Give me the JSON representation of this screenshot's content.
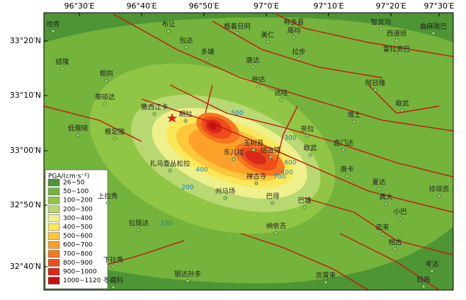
{
  "axes": {
    "lon": [
      "96°30′E",
      "96°40′E",
      "96°50′E",
      "97°0′E",
      "97°10′E",
      "97°20′E",
      "97°30′E"
    ],
    "lat": [
      "33°20′N",
      "33°10′N",
      "33°00′N",
      "32°50′N",
      "32°40′N"
    ]
  },
  "places": [
    "哈秀",
    "布让",
    "根着日阿",
    "称多县",
    "周均",
    "智贡沟",
    "曲麻陇巴",
    "包达",
    "美仁",
    "西道班",
    "多塘",
    "拉步",
    "宴拉贡巴",
    "结隆",
    "唐达",
    "帮同",
    "仲达",
    "阿日隆",
    "蒂琼达",
    "达哇",
    "歇武",
    "撒西江卡",
    "期拉",
    "增土",
    "低俄晓",
    "根足陇",
    "奈拉",
    "直门达",
    "玉树县",
    "结古镇",
    "东儿拉",
    "歇武",
    "扎马查丛松拉",
    "禅古寺",
    "唐卡",
    "夏达",
    "珍琼贡",
    "州马场",
    "巴得",
    "真大",
    "巴塘",
    "上拉秀",
    "小巴",
    "拉陇达",
    "纳依吉",
    "忠来",
    "相古",
    "下拉秀",
    "银达孙多",
    "贡霄来",
    "冬藏科",
    "考达",
    "挡拖"
  ],
  "contour_labels": [
    "500",
    "400",
    "300",
    "400",
    "600",
    "700",
    "200",
    "100"
  ],
  "legend": {
    "title": "PGA/(cm·s⁻²)",
    "items": [
      {
        "label": "26~50",
        "color": "#4e9535"
      },
      {
        "label": "50~100",
        "color": "#74b33c"
      },
      {
        "label": "100~200",
        "color": "#91c545"
      },
      {
        "label": "200~300",
        "color": "#b8d872"
      },
      {
        "label": "300~400",
        "color": "#eef08c"
      },
      {
        "label": "400~500",
        "color": "#fbe85a"
      },
      {
        "label": "500~600",
        "color": "#fec63a"
      },
      {
        "label": "600~700",
        "color": "#fca22a"
      },
      {
        "label": "700~800",
        "color": "#f7761f"
      },
      {
        "label": "800~900",
        "color": "#ec4d1b"
      },
      {
        "label": "900~1000",
        "color": "#d9281a"
      },
      {
        "label": "1000~1120",
        "color": "#c41010"
      }
    ]
  }
}
